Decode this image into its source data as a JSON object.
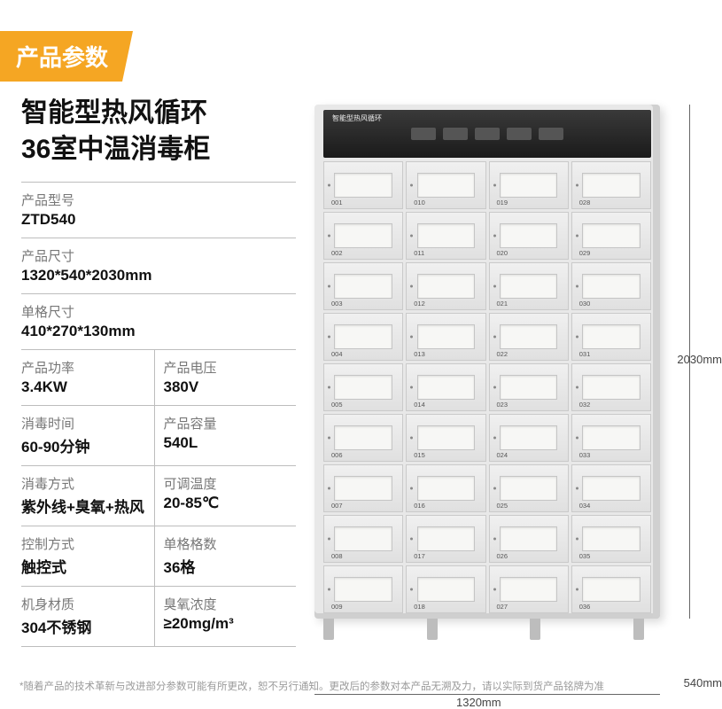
{
  "header": {
    "badge": "产品参数"
  },
  "title": {
    "line1": "智能型热风循环",
    "line2": "36室中温消毒柜"
  },
  "specs": [
    [
      {
        "label": "产品型号",
        "value": "ZTD540",
        "full": true
      }
    ],
    [
      {
        "label": "产品尺寸",
        "value": "1320*540*2030mm",
        "full": true
      }
    ],
    [
      {
        "label": "单格尺寸",
        "value": "410*270*130mm",
        "full": true
      }
    ],
    [
      {
        "label": "产品功率",
        "value": "3.4KW"
      },
      {
        "label": "产品电压",
        "value": "380V"
      }
    ],
    [
      {
        "label": "消毒时间",
        "value": "60-90分钟"
      },
      {
        "label": "产品容量",
        "value": "540L"
      }
    ],
    [
      {
        "label": "消毒方式",
        "value": "紫外线+臭氧+热风"
      },
      {
        "label": "可调温度",
        "value": "20-85℃"
      }
    ],
    [
      {
        "label": "控制方式",
        "value": "触控式"
      },
      {
        "label": "单格格数",
        "value": "36格"
      }
    ],
    [
      {
        "label": "机身材质",
        "value": "304不锈钢"
      },
      {
        "label": "臭氧浓度",
        "value": "≥20mg/m³"
      }
    ]
  ],
  "cabinet": {
    "rows": 9,
    "cols": 4,
    "panel_text": "智能型热风循环",
    "panel_bg": "#1a1a1a",
    "body_color": "#e8e8e8",
    "window_color": "#f7f7f5"
  },
  "dimensions": {
    "height": "2030mm",
    "width": "1320mm",
    "depth": "540mm"
  },
  "footnote": "*随着产品的技术革新与改进部分参数可能有所更改，恕不另行通知。更改后的参数对本产品无溯及力，请以实际到货产品铭牌为准"
}
